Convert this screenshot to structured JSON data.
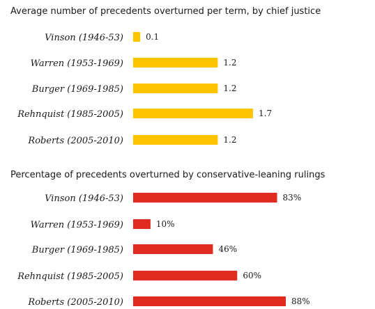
{
  "chart_data": [
    {
      "type": "bar",
      "orientation": "horizontal",
      "title": "Average number of precedents overturned per term, by chief justice",
      "categories": [
        "Vinson (1946-53)",
        "Warren (1953-1969)",
        "Burger (1969-1985)",
        "Rehnquist (1985-2005)",
        "Roberts (2005-2010)"
      ],
      "values": [
        0.1,
        1.2,
        1.2,
        1.7,
        1.2
      ],
      "value_labels": [
        "0.1",
        "1.2",
        "1.2",
        "1.7",
        "1.2"
      ],
      "bar_color": "#FFC400",
      "xlim": [
        0,
        1.7
      ]
    },
    {
      "type": "bar",
      "orientation": "horizontal",
      "title": "Percentage of precedents overturned by conservative-leaning rulings",
      "categories": [
        "Vinson (1946-53)",
        "Warren (1953-1969)",
        "Burger (1969-1985)",
        "Rehnquist (1985-2005)",
        "Roberts (2005-2010)"
      ],
      "values": [
        83,
        10,
        46,
        60,
        88
      ],
      "value_labels": [
        "83%",
        "10%",
        "46%",
        "60%",
        "88%"
      ],
      "bar_color": "#E02B20",
      "xlim": [
        0,
        88
      ]
    }
  ]
}
